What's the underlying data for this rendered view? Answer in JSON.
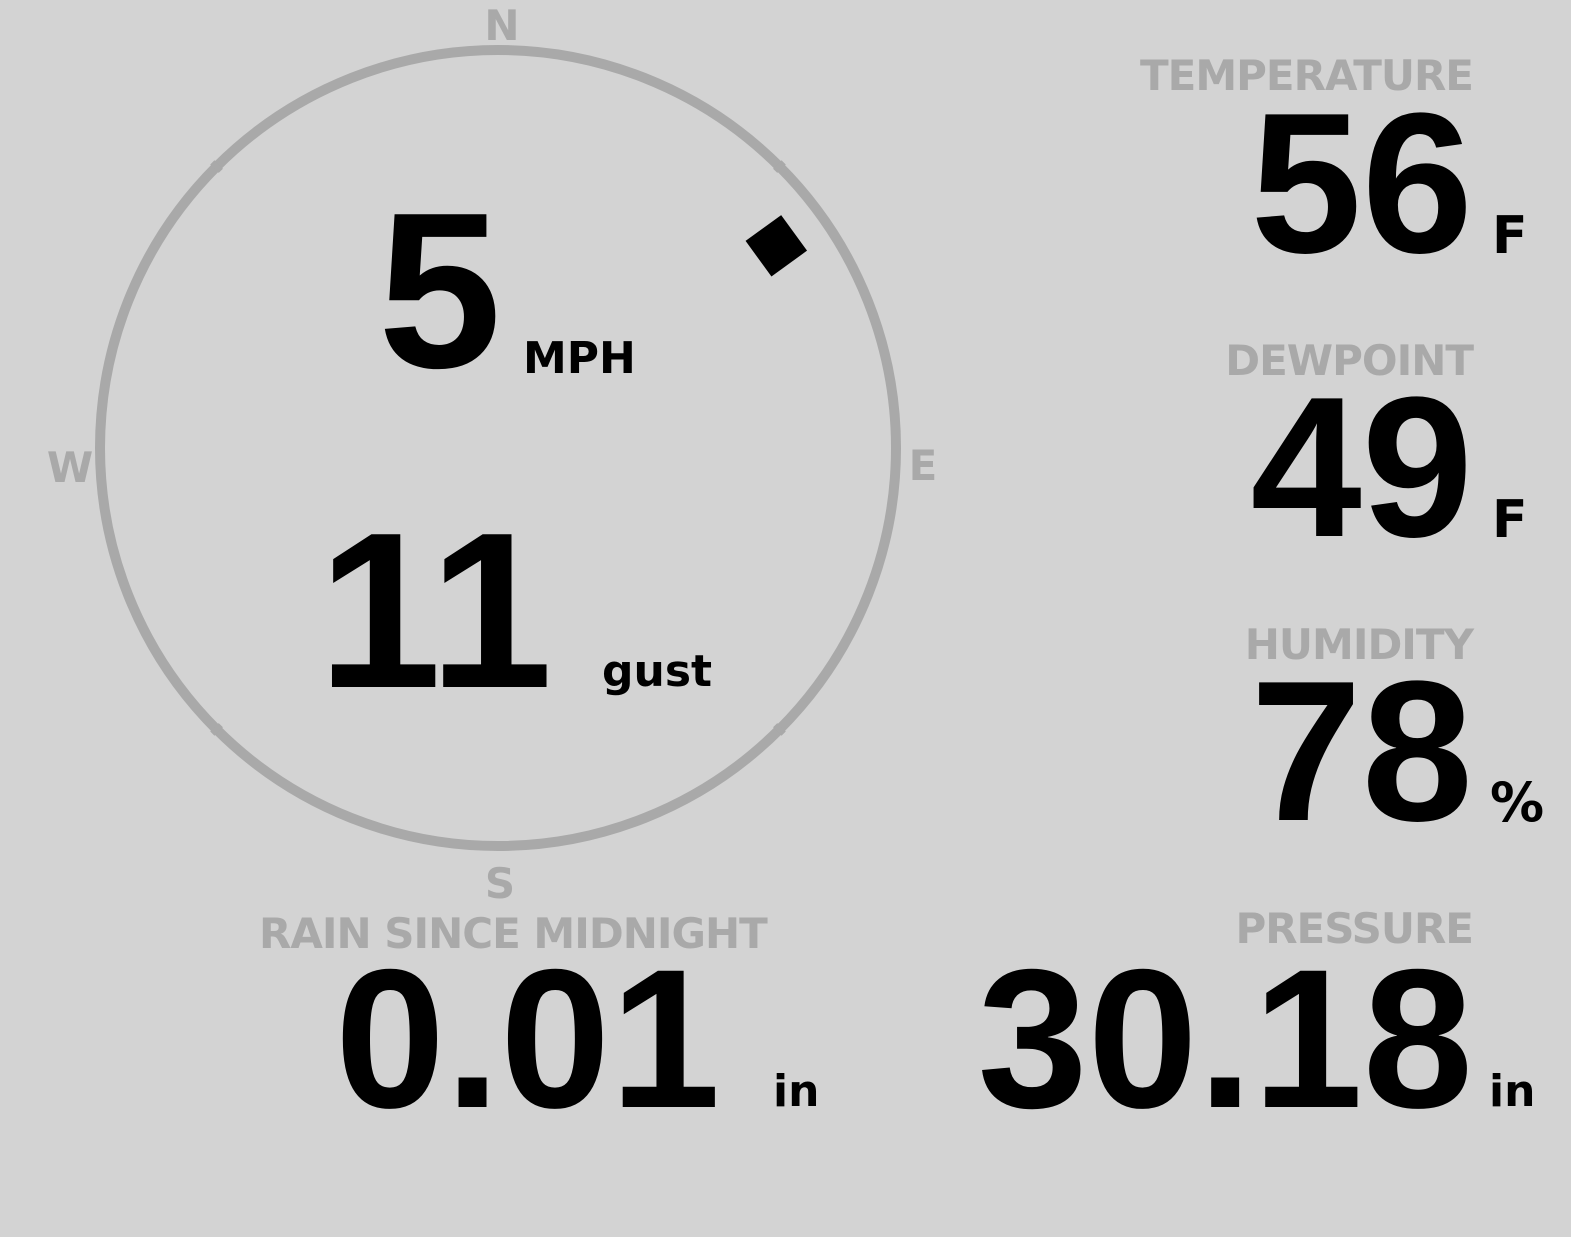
{
  "wind": {
    "speed": "5",
    "speed_unit": "MPH",
    "gust": "11",
    "gust_unit": "gust",
    "direction_deg": 54,
    "compass": {
      "n": "N",
      "e": "E",
      "s": "S",
      "w": "W"
    }
  },
  "temperature": {
    "label": "TEMPERATURE",
    "value": "56",
    "unit": "F"
  },
  "dewpoint": {
    "label": "DEWPOINT",
    "value": "49",
    "unit": "F"
  },
  "humidity": {
    "label": "HUMIDITY",
    "value": "78",
    "unit": "%"
  },
  "rain": {
    "label": "RAIN SINCE MIDNIGHT",
    "value": "0.01",
    "unit": "in"
  },
  "pressure": {
    "label": "PRESSURE",
    "value": "30.18",
    "unit": "in"
  },
  "colors": {
    "background": "#d3d3d3",
    "label": "#a9a9a9",
    "value": "#000000",
    "ring": "#a9a9a9"
  }
}
